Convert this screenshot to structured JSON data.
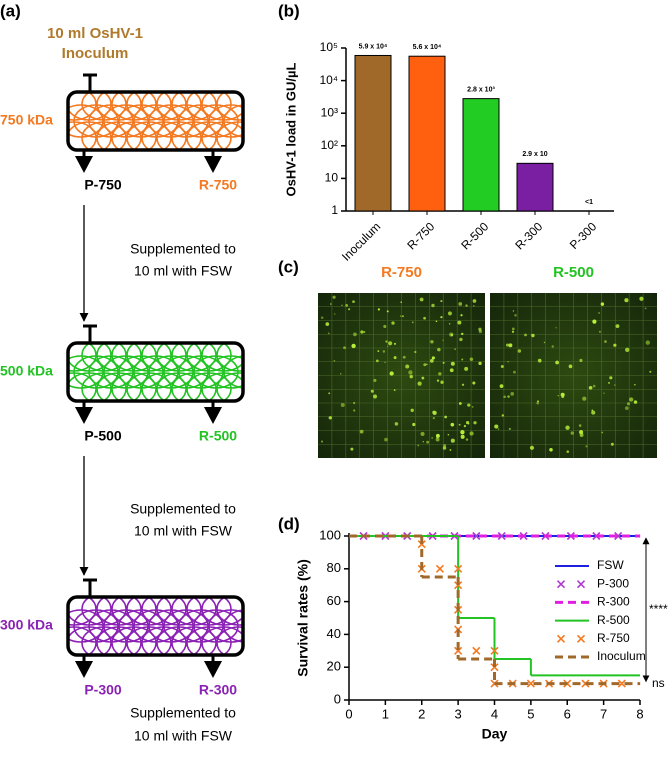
{
  "panel_labels": [
    "(a)",
    "(b)",
    "(c)",
    "(d)"
  ],
  "diagram": {
    "inoculum": [
      "10 ml OsHV-1",
      "Inoculum"
    ],
    "inoculum_color": "#b07a2c",
    "stages": [
      {
        "size": "750 kDa",
        "color": "#f47920",
        "permeate": "P-750",
        "permeate_color": "#000000",
        "retentate": "R-750",
        "retentate_color": "#f47920",
        "note": [
          "Supplemented to",
          "10 ml with FSW"
        ]
      },
      {
        "size": "500 kDa",
        "color": "#22c322",
        "permeate": "P-500",
        "permeate_color": "#000000",
        "retentate": "R-500",
        "retentate_color": "#22c322",
        "note": [
          "Supplemented to",
          "10 ml with FSW"
        ]
      },
      {
        "size": "300 kDa",
        "color": "#8c22b5",
        "permeate": "P-300",
        "permeate_color": "#8c22b5",
        "retentate": "R-300",
        "retentate_color": "#8c22b5",
        "note": [
          "Supplemented to",
          "10 ml with FSW"
        ]
      }
    ]
  },
  "chart_data": [
    {
      "type": "bar",
      "y_label": "OsHV-1 load in GU/µL",
      "categories": [
        "Inoculum",
        "R-750",
        "R-500",
        "R-300",
        "P-300"
      ],
      "values": [
        59000,
        56000,
        2800,
        29,
        null
      ],
      "value_labels": [
        "5.9 x 10⁴",
        "5.6 x 10⁴",
        "2.8 x 10³",
        "2.9 x 10",
        "<1"
      ],
      "colors": [
        "#a0692a",
        "#ff6010",
        "#22cc22",
        "#7a1fa2",
        "#7a1fa2"
      ],
      "log_y": true,
      "ylim": [
        1,
        100000
      ],
      "yticks": [
        1,
        10,
        {
          "value": 100,
          "label": "10²"
        },
        {
          "value": 1000,
          "label": "10³"
        },
        {
          "value": 10000,
          "label": "10⁴"
        },
        {
          "value": 100000,
          "label": "10⁵"
        }
      ]
    },
    {
      "type": "line",
      "x_label": "Day",
      "y_label": "Survival rates (%)",
      "xlim": [
        0,
        8
      ],
      "xticks": [
        0,
        1,
        2,
        3,
        4,
        5,
        6,
        7,
        8
      ],
      "ylim": [
        0,
        100
      ],
      "yticks": [
        0,
        20,
        40,
        60,
        80,
        100
      ],
      "legend": "upper right",
      "series": [
        {
          "name": "FSW",
          "color": "#1f1fe0",
          "line": "solid",
          "step": "post",
          "x": [
            0,
            8
          ],
          "values": [
            100,
            100
          ]
        },
        {
          "name": "P-300",
          "color": "#b03ad0",
          "marker": "x",
          "x": [
            0.4,
            1,
            1.6,
            2.3,
            2.9,
            3.5,
            4.2,
            4.8,
            5.4,
            6.1,
            6.8,
            7.4
          ],
          "values": [
            100,
            100,
            100,
            100,
            100,
            100,
            100,
            100,
            100,
            100,
            100,
            100
          ]
        },
        {
          "name": "R-300",
          "color": "#e020e0",
          "line": "dashed",
          "step": "post",
          "x": [
            0,
            8
          ],
          "values": [
            100,
            100
          ]
        },
        {
          "name": "R-500",
          "color": "#22c322",
          "line": "solid",
          "step": "post",
          "x": [
            0,
            3,
            4,
            5,
            8
          ],
          "values": [
            100,
            50,
            25,
            15,
            15
          ]
        },
        {
          "name": "R-750",
          "color": "#f47920",
          "marker": "x",
          "x": [
            2,
            2,
            2.5,
            3,
            3,
            3,
            3,
            3,
            3.5,
            4,
            4,
            4,
            4.5,
            5,
            5.5,
            6,
            6.5,
            7,
            7.5
          ],
          "values": [
            95,
            80,
            80,
            80,
            70,
            55,
            43,
            30,
            30,
            30,
            20,
            10,
            10,
            10,
            10,
            10,
            10,
            10,
            10
          ]
        },
        {
          "name": "Inoculum",
          "color": "#a0692a",
          "line": "dashed",
          "step": "post",
          "x": [
            0,
            2,
            3,
            4,
            8
          ],
          "values": [
            100,
            75,
            25,
            10,
            10
          ]
        }
      ],
      "annotations": [
        "****",
        "ns"
      ]
    }
  ],
  "micrographs": [
    {
      "label": "R-750",
      "color": "#f47920"
    },
    {
      "label": "R-500",
      "color": "#22c322"
    }
  ]
}
